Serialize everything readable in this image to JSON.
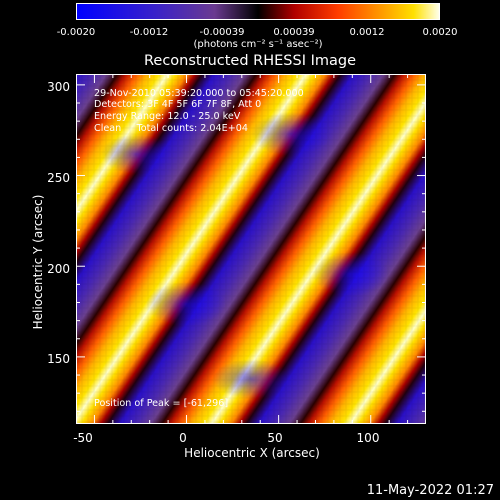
{
  "colorbar": {
    "tick_labels": [
      "-0.0020",
      "-0.0012",
      "-0.00039",
      "0.00039",
      "0.0012",
      "0.0020"
    ],
    "units": "(photons cm⁻² s⁻¹ asec⁻²)"
  },
  "title": "Reconstructed RHESSI Image",
  "info": {
    "time": "29-Nov-2010 05:39:20.000 to 05:45:20.000",
    "detectors": "Detectors: 3F 4F 5F 6F 7F 8F, Att 0",
    "energy": "Energy Range: 12.0 - 25.0 keV",
    "clean": "Clean     Total counts: 2.04E+04"
  },
  "peak_label": "Position of Peak = [-61,296]",
  "axes": {
    "xlabel": "Heliocentric X (arcsec)",
    "ylabel": "Heliocentric Y (arcsec)",
    "xticks": [
      "-50",
      "0",
      "50",
      "100"
    ],
    "yticks": [
      "150",
      "200",
      "250",
      "300"
    ]
  },
  "timestamp": "11-May-2022 01:27",
  "colors": {
    "background": "#000000",
    "foreground": "#ffffff",
    "cmap": [
      "#0000ff",
      "#5a3aa0",
      "#000000",
      "#c81e00",
      "#ff8c00",
      "#ffd400",
      "#ffffe0"
    ]
  }
}
